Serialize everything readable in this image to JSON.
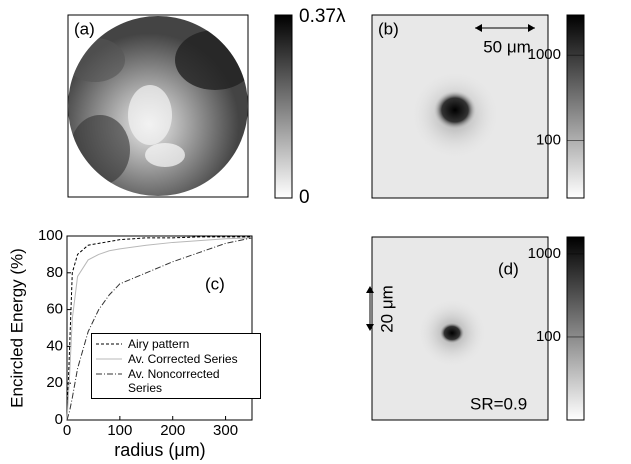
{
  "panels": {
    "a": {
      "label": "(a)",
      "colorbar": {
        "lim": [
          0,
          0.37
        ],
        "ticks": [
          0,
          {
            "value": 0.37,
            "label": "0.37λ"
          }
        ]
      }
    },
    "b": {
      "label": "(b)",
      "scale_bar": "50 μm",
      "colorbar": {
        "log": true,
        "lim": [
          21,
          2960
        ],
        "ticks": [
          100,
          1000
        ]
      }
    },
    "d": {
      "label": "(d)",
      "scale_bar": "20 μm",
      "annotation": "SR=0.9",
      "colorbar": {
        "log": true,
        "lim": [
          10,
          1600
        ],
        "ticks": [
          100,
          1000
        ]
      }
    }
  },
  "chart_data": {
    "type": "line",
    "label": "(c)",
    "xlabel": "radius (μm)",
    "ylabel": "Encircled Energy (%)",
    "x": [
      0,
      5,
      10,
      20,
      40,
      60,
      80,
      100,
      150,
      200,
      250,
      300,
      350
    ],
    "xlim": [
      0,
      350
    ],
    "xticks": [
      0,
      100,
      200,
      300
    ],
    "ylim": [
      0,
      100
    ],
    "yticks": [
      0,
      20,
      40,
      60,
      80,
      100
    ],
    "series": [
      {
        "name": "Airy pattern",
        "color": "#000000",
        "dash": "3,2",
        "values": [
          0,
          40,
          80,
          90,
          95,
          96,
          97,
          98,
          99,
          99,
          99.5,
          99.5,
          99.5
        ]
      },
      {
        "name": "Av. Corrected Series",
        "color": "#b8b8b8",
        "dash": "none",
        "values": [
          0,
          25,
          55,
          78,
          87,
          90,
          92,
          93,
          95,
          96.5,
          97.5,
          98.5,
          99
        ]
      },
      {
        "name": "Av. Noncorrected Series",
        "color": "#333333",
        "dash": "6,2,1,2",
        "values": [
          0,
          5,
          12,
          28,
          48,
          60,
          68,
          74,
          80,
          86,
          91,
          96,
          99
        ]
      }
    ]
  }
}
